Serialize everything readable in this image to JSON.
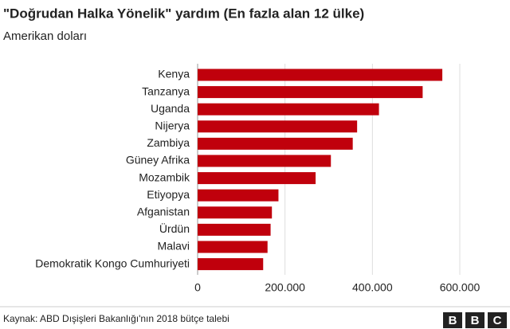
{
  "chart_data": {
    "type": "bar",
    "orientation": "horizontal",
    "title": "\"Doğrudan Halka Yönelik\" yardım (En fazla alan 12 ülke)",
    "subtitle": "Amerikan doları",
    "categories": [
      "Kenya",
      "Tanzanya",
      "Uganda",
      "Nijerya",
      "Zambiya",
      "Güney Afrika",
      "Mozambik",
      "Etiyopya",
      "Afganistan",
      "Ürdün",
      "Malavi",
      "Demokratik Kongo Cumhuriyeti"
    ],
    "values": [
      560000,
      515000,
      415000,
      365000,
      355000,
      305000,
      270000,
      185000,
      170000,
      167000,
      160000,
      150000
    ],
    "color": "#c0000c",
    "xlim": [
      0,
      600000
    ],
    "xticks": [
      0,
      {
        "value": 200000,
        "label": "200.000"
      },
      {
        "value": 400000,
        "label": "400.000"
      },
      {
        "value": 600000,
        "label": "600.000"
      }
    ],
    "grid": true,
    "source": "Kaynak: ABD Dışişleri Bakanlığı'nın 2018 bütçe talebi",
    "logo": [
      "B",
      "B",
      "C"
    ]
  }
}
